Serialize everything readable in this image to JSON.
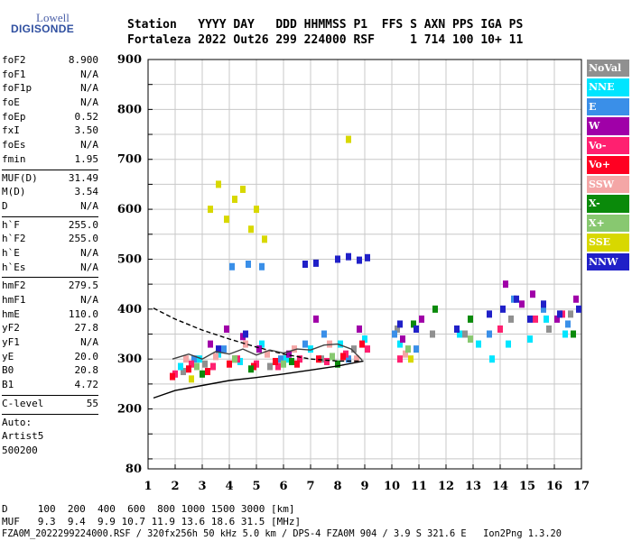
{
  "logo": {
    "line1": "Lowell",
    "line2": "DIGISONDE"
  },
  "header": {
    "row1": "Station   YYYY DAY   DDD HHMMSS P1  FFS S AXN PPS IGA PS",
    "row2": "Fortaleza 2022 Out26 299 224000 RSF     1 714 100 10+ 11"
  },
  "params": {
    "group1": [
      {
        "name": "foF2",
        "value": "8.900"
      },
      {
        "name": "foF1",
        "value": "N/A"
      },
      {
        "name": "foF1p",
        "value": "N/A"
      },
      {
        "name": "foE",
        "value": "N/A"
      },
      {
        "name": "foEp",
        "value": "0.52"
      },
      {
        "name": "fxI",
        "value": "3.50"
      },
      {
        "name": "foEs",
        "value": "N/A"
      },
      {
        "name": "fmin",
        "value": "1.95"
      }
    ],
    "group2": [
      {
        "name": "MUF(D)",
        "value": "31.49"
      },
      {
        "name": "M(D)",
        "value": "3.54"
      },
      {
        "name": "D",
        "value": "N/A"
      }
    ],
    "group3": [
      {
        "name": "h`F",
        "value": "255.0"
      },
      {
        "name": "h`F2",
        "value": "255.0"
      },
      {
        "name": "h`E",
        "value": "N/A"
      },
      {
        "name": "h`Es",
        "value": "N/A"
      }
    ],
    "group4": [
      {
        "name": "hmF2",
        "value": "279.5"
      },
      {
        "name": "hmF1",
        "value": "N/A"
      },
      {
        "name": "hmE",
        "value": "110.0"
      },
      {
        "name": "yF2",
        "value": "27.8"
      },
      {
        "name": "yF1",
        "value": "N/A"
      },
      {
        "name": "yE",
        "value": "20.0"
      },
      {
        "name": "B0",
        "value": "20.8"
      },
      {
        "name": "B1",
        "value": "4.72"
      }
    ],
    "group5": [
      {
        "name": "C-level",
        "value": "55"
      }
    ],
    "auto": [
      "Auto:",
      "Artist5",
      "500200"
    ]
  },
  "legend": [
    {
      "label": "NoVal",
      "bg": "#909090",
      "fg": "#ffffff"
    },
    {
      "label": "NNE",
      "bg": "#00e5ff",
      "fg": "#ffffff"
    },
    {
      "label": "E",
      "bg": "#3a8fe8",
      "fg": "#ffffff"
    },
    {
      "label": "W",
      "bg": "#a000a8",
      "fg": "#ffffff"
    },
    {
      "label": "Vo-",
      "bg": "#ff2070",
      "fg": "#ffffff"
    },
    {
      "label": "Vo+",
      "bg": "#ff0022",
      "fg": "#ffffff"
    },
    {
      "label": "SSW",
      "bg": "#f4a6a6",
      "fg": "#ffffff"
    },
    {
      "label": "X-",
      "bg": "#0a8a0a",
      "fg": "#ffffff"
    },
    {
      "label": "X+",
      "bg": "#88c870",
      "fg": "#ffffff"
    },
    {
      "label": "SSE",
      "bg": "#d8d800",
      "fg": "#ffffff"
    },
    {
      "label": "NNW",
      "bg": "#2020c8",
      "fg": "#ffffff"
    }
  ],
  "bottom": {
    "row1": "D     100  200  400  600  800 1000 1500 3000 [km]",
    "row2": "MUF   9.3  9.4  9.9 10.7 11.9 13.6 18.6 31.5 [MHz]",
    "row3": "FZA0M_2022299224000.RSF / 320fx256h 50 kHz 5.0 km / DPS-4 FZA0M 904 / 3.9 S 321.6 E   Ion2Png 1.3.20"
  },
  "chart_data": {
    "type": "scatter",
    "title": "",
    "xlabel": "",
    "ylabel": "",
    "xlim": [
      1,
      17
    ],
    "ylim": [
      80,
      900
    ],
    "x_ticks": [
      "1",
      "2",
      "3",
      "4",
      "5",
      "6",
      "7",
      "8",
      "9",
      "10",
      "11",
      "12",
      "13",
      "14",
      "15",
      "16",
      "17"
    ],
    "y_ticks": [
      "80",
      "200",
      "300",
      "400",
      "500",
      "600",
      "700",
      "800",
      "900"
    ],
    "grid": true,
    "series": [
      {
        "name": "NoVal",
        "color": "#909090",
        "points": [
          [
            2.3,
            275
          ],
          [
            3.1,
            290
          ],
          [
            4.2,
            300
          ],
          [
            5.5,
            285
          ],
          [
            7.4,
            300
          ],
          [
            8.6,
            320
          ],
          [
            10.2,
            360
          ],
          [
            11.5,
            350
          ],
          [
            12.7,
            350
          ],
          [
            14.4,
            380
          ],
          [
            15.8,
            360
          ],
          [
            16.6,
            390
          ]
        ]
      },
      {
        "name": "NNE",
        "color": "#00e5ff",
        "points": [
          [
            2.2,
            285
          ],
          [
            2.9,
            300
          ],
          [
            3.6,
            310
          ],
          [
            4.4,
            295
          ],
          [
            5.2,
            330
          ],
          [
            6.1,
            300
          ],
          [
            7.0,
            320
          ],
          [
            8.1,
            330
          ],
          [
            9.0,
            340
          ],
          [
            10.3,
            330
          ],
          [
            12.5,
            350
          ],
          [
            13.2,
            330
          ],
          [
            13.7,
            300
          ],
          [
            14.3,
            330
          ],
          [
            15.1,
            340
          ],
          [
            15.7,
            380
          ],
          [
            16.4,
            350
          ]
        ]
      },
      {
        "name": "E",
        "color": "#3a8fe8",
        "points": [
          [
            2.7,
            300
          ],
          [
            3.8,
            320
          ],
          [
            4.1,
            485
          ],
          [
            4.7,
            490
          ],
          [
            5.2,
            485
          ],
          [
            5.9,
            300
          ],
          [
            6.8,
            330
          ],
          [
            7.5,
            350
          ],
          [
            8.4,
            300
          ],
          [
            10.1,
            350
          ],
          [
            10.9,
            320
          ],
          [
            13.6,
            350
          ],
          [
            14.5,
            420
          ],
          [
            15.6,
            400
          ],
          [
            16.5,
            370
          ]
        ]
      },
      {
        "name": "W",
        "color": "#a000a8",
        "points": [
          [
            3.3,
            330
          ],
          [
            3.9,
            360
          ],
          [
            4.5,
            345
          ],
          [
            5.1,
            320
          ],
          [
            6.2,
            310
          ],
          [
            7.2,
            380
          ],
          [
            8.8,
            360
          ],
          [
            10.4,
            340
          ],
          [
            11.1,
            380
          ],
          [
            14.2,
            450
          ],
          [
            14.8,
            410
          ],
          [
            15.2,
            430
          ],
          [
            16.1,
            380
          ],
          [
            16.8,
            420
          ]
        ]
      },
      {
        "name": "Vo-",
        "color": "#ff2070",
        "points": [
          [
            2.0,
            270
          ],
          [
            2.6,
            290
          ],
          [
            3.4,
            285
          ],
          [
            4.3,
            300
          ],
          [
            5.0,
            290
          ],
          [
            5.8,
            285
          ],
          [
            6.6,
            300
          ],
          [
            7.6,
            295
          ],
          [
            8.3,
            310
          ],
          [
            9.1,
            320
          ],
          [
            10.3,
            300
          ],
          [
            14.0,
            360
          ],
          [
            15.3,
            380
          ],
          [
            16.3,
            390
          ]
        ]
      },
      {
        "name": "Vo+",
        "color": "#ff0022",
        "points": [
          [
            1.9,
            265
          ],
          [
            2.5,
            280
          ],
          [
            3.2,
            275
          ],
          [
            4.0,
            290
          ],
          [
            4.9,
            285
          ],
          [
            5.7,
            295
          ],
          [
            6.5,
            290
          ],
          [
            7.3,
            300
          ],
          [
            8.2,
            305
          ],
          [
            8.9,
            330
          ]
        ]
      },
      {
        "name": "SSW",
        "color": "#f4a6a6",
        "points": [
          [
            2.4,
            300
          ],
          [
            3.5,
            305
          ],
          [
            4.6,
            330
          ],
          [
            5.4,
            310
          ],
          [
            6.4,
            320
          ],
          [
            7.7,
            330
          ],
          [
            8.7,
            300
          ],
          [
            10.5,
            310
          ]
        ]
      },
      {
        "name": "X-",
        "color": "#0a8a0a",
        "points": [
          [
            3.0,
            270
          ],
          [
            4.8,
            280
          ],
          [
            6.3,
            295
          ],
          [
            8.0,
            290
          ],
          [
            10.8,
            370
          ],
          [
            11.6,
            400
          ],
          [
            12.9,
            380
          ],
          [
            16.7,
            350
          ]
        ]
      },
      {
        "name": "X+",
        "color": "#88c870",
        "points": [
          [
            2.8,
            285
          ],
          [
            4.2,
            300
          ],
          [
            6.0,
            290
          ],
          [
            7.8,
            305
          ],
          [
            10.6,
            320
          ],
          [
            12.9,
            340
          ]
        ]
      },
      {
        "name": "SSE",
        "color": "#d8d800",
        "points": [
          [
            2.6,
            260
          ],
          [
            3.3,
            600
          ],
          [
            3.6,
            650
          ],
          [
            3.9,
            580
          ],
          [
            4.2,
            620
          ],
          [
            4.5,
            640
          ],
          [
            4.8,
            560
          ],
          [
            5.0,
            600
          ],
          [
            5.3,
            540
          ],
          [
            8.4,
            740
          ],
          [
            10.7,
            300
          ]
        ]
      },
      {
        "name": "NNW",
        "color": "#2020c8",
        "points": [
          [
            3.6,
            320
          ],
          [
            4.6,
            350
          ],
          [
            6.8,
            490
          ],
          [
            7.2,
            492
          ],
          [
            8.0,
            500
          ],
          [
            8.4,
            505
          ],
          [
            8.8,
            498
          ],
          [
            9.1,
            503
          ],
          [
            10.3,
            370
          ],
          [
            10.9,
            360
          ],
          [
            12.4,
            360
          ],
          [
            13.6,
            390
          ],
          [
            14.1,
            400
          ],
          [
            14.6,
            420
          ],
          [
            15.1,
            380
          ],
          [
            15.6,
            410
          ],
          [
            16.2,
            390
          ],
          [
            16.9,
            400
          ]
        ]
      }
    ],
    "lines": [
      {
        "style": "solid",
        "color": "#000000",
        "points": [
          [
            1.2,
            222
          ],
          [
            2.0,
            237
          ],
          [
            3.0,
            247
          ],
          [
            4.0,
            257
          ],
          [
            5.0,
            263
          ],
          [
            6.0,
            270
          ],
          [
            7.0,
            278
          ],
          [
            8.0,
            286
          ],
          [
            8.95,
            296
          ]
        ]
      },
      {
        "style": "dashed",
        "color": "#000000",
        "points": [
          [
            1.2,
            402
          ],
          [
            2.0,
            380
          ],
          [
            3.0,
            358
          ],
          [
            4.0,
            340
          ],
          [
            5.0,
            324
          ],
          [
            6.0,
            310
          ],
          [
            7.0,
            300
          ],
          [
            8.0,
            296
          ],
          [
            8.95,
            296
          ]
        ]
      },
      {
        "style": "solid",
        "color": "#404040",
        "points": [
          [
            1.9,
            300
          ],
          [
            2.5,
            310
          ],
          [
            3.0,
            300
          ],
          [
            3.5,
            315
          ],
          [
            4.0,
            310
          ],
          [
            4.5,
            320
          ],
          [
            5.0,
            308
          ],
          [
            5.5,
            318
          ],
          [
            6.0,
            312
          ],
          [
            6.5,
            320
          ],
          [
            7.0,
            318
          ],
          [
            7.5,
            328
          ],
          [
            8.0,
            330
          ],
          [
            8.5,
            320
          ],
          [
            8.9,
            298
          ]
        ]
      }
    ]
  }
}
